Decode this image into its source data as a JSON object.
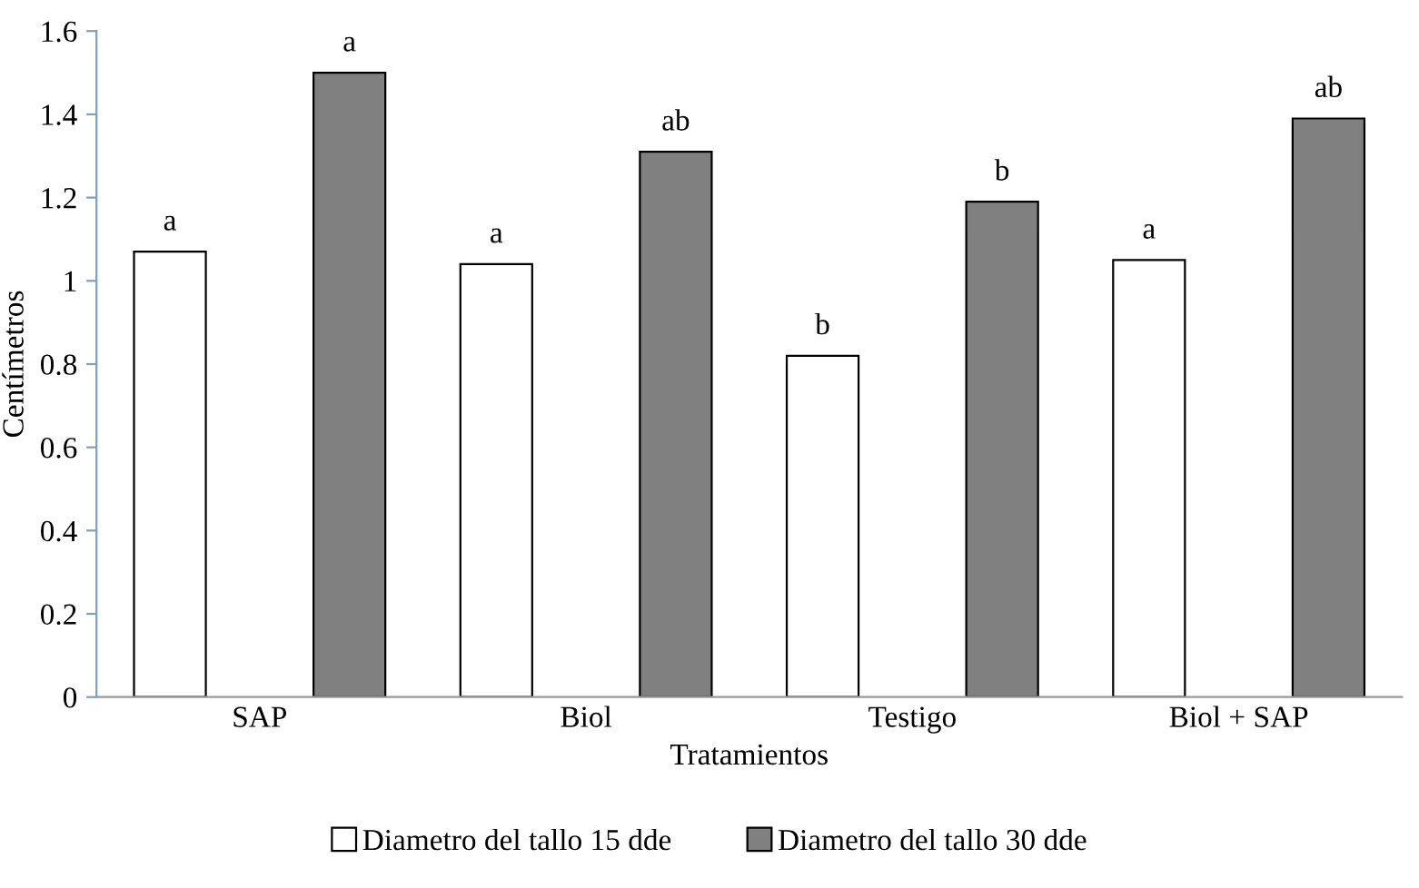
{
  "chart_data": {
    "type": "bar",
    "xlabel": "Tratamientos",
    "ylabel": "Centímetros",
    "categories": [
      "SAP",
      "Biol",
      "Testigo",
      "Biol + SAP"
    ],
    "series": [
      {
        "name": "Diametro del tallo 15 dde",
        "color": "#ffffff",
        "values": [
          1.07,
          1.04,
          0.82,
          1.05
        ]
      },
      {
        "name": "Diametro del tallo 30 dde",
        "color": "#808080",
        "values": [
          1.5,
          1.31,
          1.19,
          1.39
        ]
      }
    ],
    "ylim": [
      0,
      1.6
    ],
    "yticks": [
      0,
      0.2,
      0.4,
      0.6,
      0.8,
      1,
      1.2,
      1.4,
      1.6
    ],
    "grid": false,
    "legend": "bottom",
    "annotations": [
      "a",
      "a",
      "a",
      "ab",
      "b",
      "b",
      "a",
      "ab"
    ]
  }
}
